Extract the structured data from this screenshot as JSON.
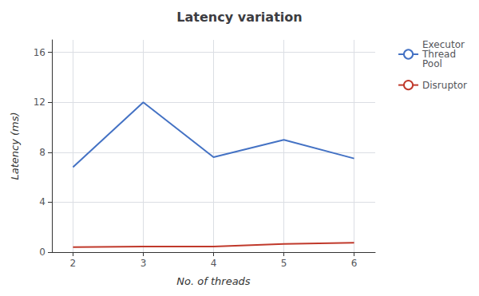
{
  "chart_data": {
    "type": "line",
    "title": "Latency variation",
    "xlabel": "No. of threads",
    "ylabel": "Latency (ms)",
    "x": [
      2,
      3,
      4,
      5,
      6
    ],
    "series": [
      {
        "name": "Executor\nThread\nPool",
        "color": "#4472c4",
        "values": [
          6.8,
          12.0,
          7.6,
          9.0,
          7.5
        ]
      },
      {
        "name": "Disruptor",
        "color": "#c0392b",
        "values": [
          0.4,
          0.45,
          0.45,
          0.65,
          0.75
        ]
      }
    ],
    "xlim": [
      1.7,
      6.3
    ],
    "xticks": [
      2,
      3,
      4,
      5,
      6
    ],
    "ylim": [
      0,
      17
    ],
    "yticks": [
      0,
      4,
      8,
      12,
      16
    ],
    "grid": true,
    "legend": "right"
  }
}
